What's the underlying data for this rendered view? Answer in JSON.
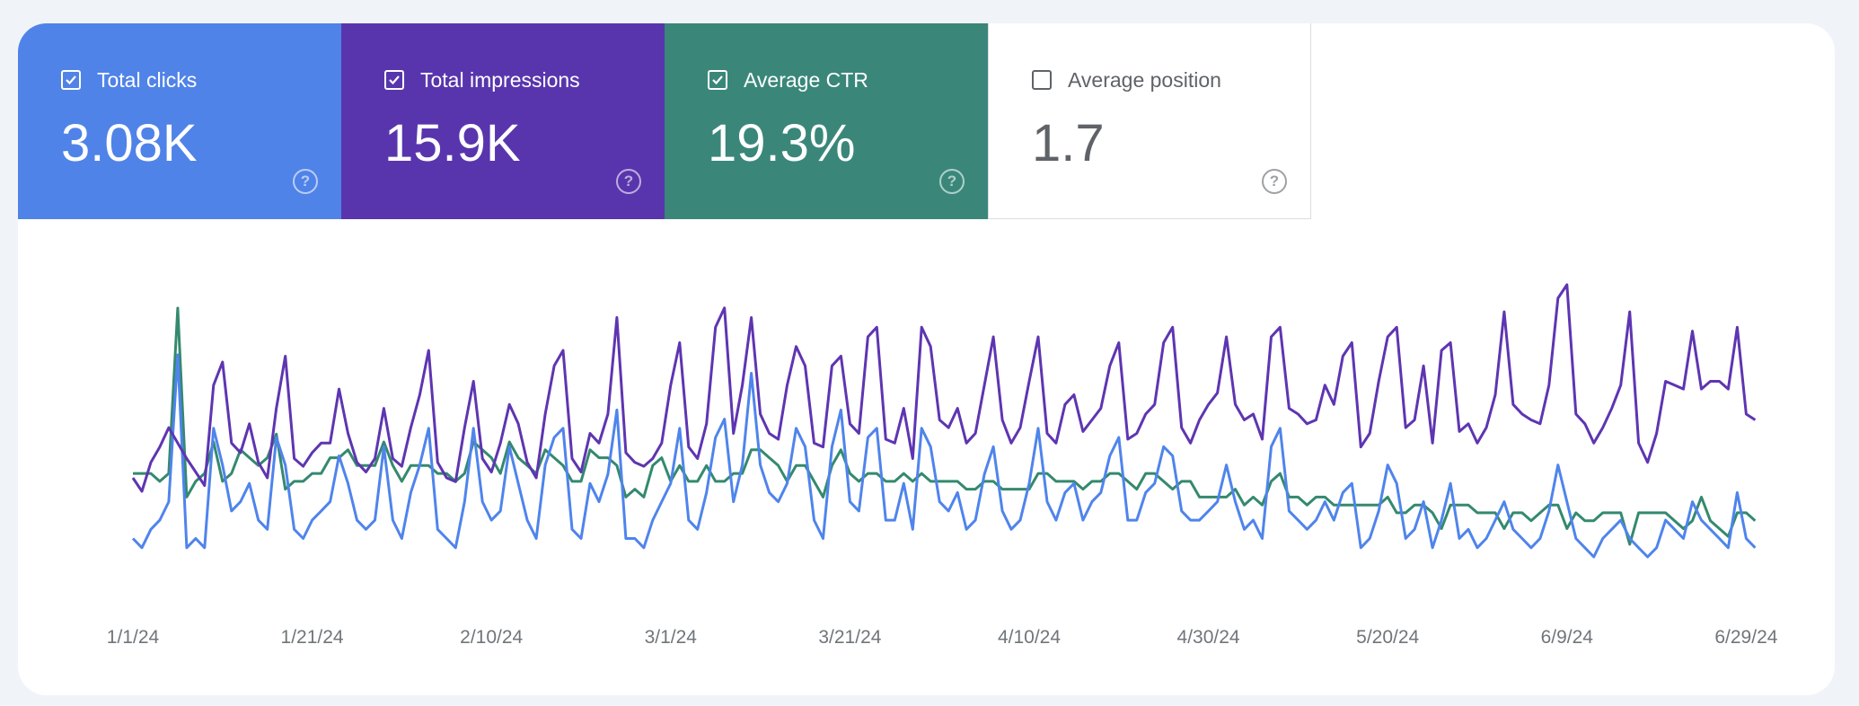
{
  "metrics": [
    {
      "label": "Total clicks",
      "value": "3.08K",
      "checked": true,
      "color": "#5083e8"
    },
    {
      "label": "Total impressions",
      "value": "15.9K",
      "checked": true,
      "color": "#5935ad"
    },
    {
      "label": "Average CTR",
      "value": "19.3%",
      "checked": true,
      "color": "#3a877a"
    },
    {
      "label": "Average position",
      "value": "1.7",
      "checked": false,
      "color": "#ffffff"
    }
  ],
  "help_icon": "question-circle-icon",
  "chart_data": {
    "type": "line",
    "x_start": "1/1/24",
    "x_end": "6/30/24",
    "x_ticks": [
      "1/1/24",
      "1/21/24",
      "2/10/24",
      "3/1/24",
      "3/21/24",
      "4/10/24",
      "4/30/24",
      "5/20/24",
      "6/9/24",
      "6/29/24"
    ],
    "grid": false,
    "series": [
      {
        "name": "Total clicks",
        "color": "#4f84ec",
        "values": [
          10,
          9,
          11,
          12,
          14,
          30,
          9,
          10,
          9,
          22,
          18,
          13,
          14,
          16,
          12,
          11,
          21,
          18,
          11,
          10,
          12,
          13,
          14,
          19,
          16,
          12,
          11,
          12,
          20,
          12,
          10,
          15,
          18,
          22,
          11,
          10,
          9,
          14,
          22,
          14,
          12,
          13,
          20,
          16,
          12,
          10,
          18,
          21,
          22,
          11,
          10,
          16,
          14,
          17,
          24,
          10,
          10,
          9,
          12,
          14,
          16,
          22,
          12,
          11,
          15,
          21,
          23,
          14,
          18,
          28,
          18,
          15,
          14,
          16,
          22,
          20,
          12,
          10,
          20,
          24,
          14,
          13,
          21,
          22,
          12,
          12,
          16,
          11,
          22,
          20,
          14,
          13,
          15,
          11,
          12,
          17,
          20,
          13,
          11,
          12,
          16,
          22,
          14,
          12,
          15,
          16,
          12,
          14,
          15,
          19,
          21,
          12,
          12,
          15,
          16,
          20,
          19,
          13,
          12,
          12,
          13,
          14,
          18,
          14,
          11,
          12,
          10,
          20,
          22,
          13,
          12,
          11,
          12,
          14,
          12,
          15,
          16,
          9,
          10,
          13,
          18,
          16,
          10,
          11,
          14,
          9,
          12,
          16,
          10,
          11,
          9,
          10,
          12,
          14,
          11,
          10,
          9,
          10,
          13,
          18,
          14,
          10,
          9,
          8,
          10,
          11,
          12,
          10,
          9,
          8,
          9,
          12,
          11,
          10,
          14,
          12,
          11,
          10,
          9,
          15,
          10,
          9
        ]
      },
      {
        "name": "Total impressions",
        "color": "#5e35b1",
        "values": [
          62,
          55,
          70,
          78,
          88,
          80,
          72,
          65,
          58,
          110,
          122,
          80,
          75,
          90,
          70,
          62,
          98,
          125,
          72,
          68,
          75,
          80,
          80,
          108,
          85,
          70,
          65,
          72,
          98,
          72,
          68,
          88,
          105,
          128,
          70,
          62,
          60,
          88,
          112,
          72,
          65,
          80,
          100,
          90,
          70,
          62,
          95,
          120,
          128,
          72,
          65,
          85,
          80,
          95,
          145,
          75,
          70,
          68,
          72,
          80,
          110,
          132,
          78,
          72,
          90,
          140,
          150,
          85,
          110,
          145,
          95,
          85,
          82,
          110,
          130,
          120,
          80,
          78,
          120,
          125,
          90,
          85,
          135,
          140,
          82,
          80,
          98,
          72,
          140,
          130,
          92,
          88,
          98,
          80,
          85,
          110,
          135,
          92,
          80,
          88,
          112,
          135,
          85,
          80,
          100,
          105,
          86,
          92,
          98,
          120,
          132,
          82,
          85,
          95,
          100,
          132,
          140,
          88,
          80,
          92,
          100,
          106,
          135,
          100,
          92,
          95,
          82,
          135,
          140,
          98,
          95,
          90,
          92,
          110,
          100,
          125,
          132,
          78,
          85,
          112,
          135,
          140,
          88,
          92,
          120,
          80,
          128,
          132,
          86,
          90,
          80,
          88,
          105,
          148,
          100,
          95,
          92,
          90,
          110,
          155,
          162,
          95,
          90,
          80,
          88,
          98,
          110,
          148,
          80,
          70,
          85,
          112,
          110,
          108,
          138,
          108,
          112,
          112,
          108,
          140,
          95,
          92
        ]
      },
      {
        "name": "Average CTR",
        "color": "#34896f",
        "values": [
          16,
          16,
          16,
          15,
          16,
          37,
          13,
          15,
          16,
          20,
          15,
          16,
          19,
          18,
          17,
          18,
          21,
          14,
          15,
          15,
          16,
          16,
          18,
          18,
          19,
          17,
          17,
          17,
          20,
          17,
          15,
          17,
          17,
          17,
          16,
          16,
          15,
          16,
          20,
          19,
          18,
          16,
          20,
          18,
          17,
          16,
          19,
          18,
          17,
          15,
          15,
          19,
          18,
          18,
          17,
          13,
          14,
          13,
          17,
          18,
          15,
          17,
          15,
          15,
          17,
          15,
          15,
          16,
          16,
          19,
          19,
          18,
          17,
          15,
          17,
          17,
          15,
          13,
          17,
          19,
          16,
          15,
          16,
          16,
          15,
          15,
          16,
          15,
          16,
          15,
          15,
          15,
          15,
          14,
          14,
          15,
          15,
          14,
          14,
          14,
          14,
          16,
          16,
          15,
          15,
          15,
          14,
          15,
          15,
          16,
          16,
          15,
          14,
          16,
          16,
          15,
          14,
          15,
          15,
          13,
          13,
          13,
          13,
          14,
          12,
          13,
          12,
          15,
          16,
          13,
          13,
          12,
          13,
          13,
          12,
          12,
          12,
          12,
          12,
          12,
          13,
          11,
          11,
          12,
          12,
          11,
          9,
          12,
          12,
          12,
          11,
          11,
          11,
          9,
          11,
          11,
          10,
          11,
          12,
          12,
          9,
          11,
          10,
          10,
          11,
          11,
          11,
          7,
          11,
          11,
          11,
          11,
          10,
          9,
          10,
          13,
          10,
          9,
          8,
          11,
          11,
          10
        ]
      }
    ]
  }
}
